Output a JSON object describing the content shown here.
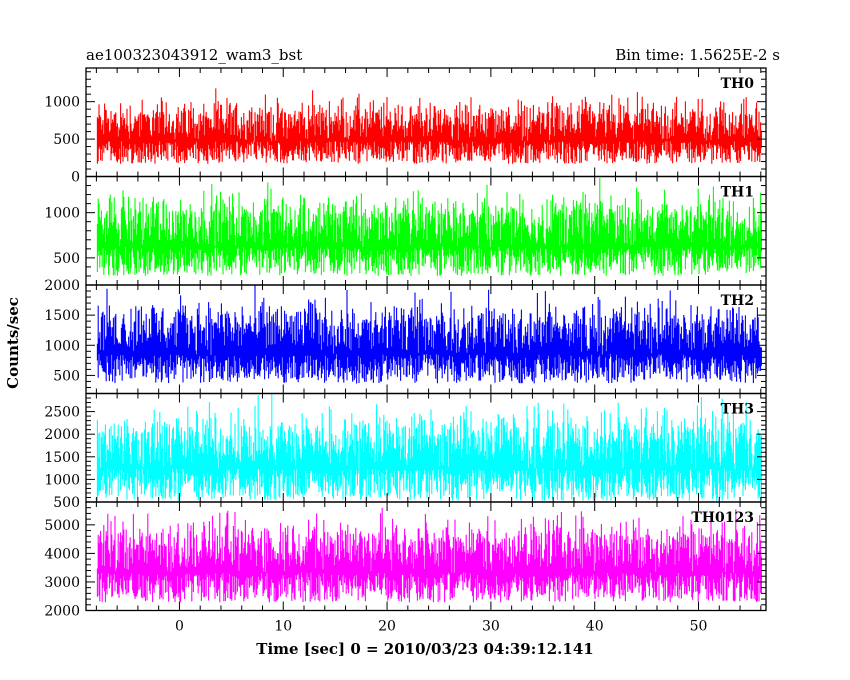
{
  "chart_data": {
    "type": "line",
    "title_left": "ae100323043912_wam3_bst",
    "title_right": "Bin time: 1.5625E-2 s",
    "xlabel": "Time [sec] 0 = 2010/03/23 04:39:12.141",
    "ylabel": "Counts/sec",
    "xlim": [
      -9,
      56.5
    ],
    "data_x_range": [
      -7.9,
      56.1
    ],
    "x_ticks": [
      0,
      10,
      20,
      30,
      40,
      50
    ],
    "x_tick_labels": [
      "0",
      "10",
      "20",
      "30",
      "40",
      "50"
    ],
    "x_minor_step": 2,
    "panels": [
      {
        "name": "TH0",
        "color": "#ff0000",
        "ylim": [
          0,
          1450
        ],
        "y_ticks": [
          0,
          500,
          1000
        ],
        "y_tick_labels": [
          "0",
          "500",
          "1000"
        ],
        "y_minor_step": 100,
        "mean": 560,
        "spread": 400,
        "min": 40,
        "max": 1450
      },
      {
        "name": "TH1",
        "color": "#00ff00",
        "ylim": [
          200,
          1400
        ],
        "y_ticks": [
          500,
          1000
        ],
        "y_tick_labels": [
          "500",
          "1000"
        ],
        "y_minor_step": 100,
        "mean": 720,
        "spread": 430,
        "min": 260,
        "max": 1400
      },
      {
        "name": "TH2",
        "color": "#0000ff",
        "ylim": [
          200,
          2000
        ],
        "y_ticks": [
          500,
          1000,
          1500,
          2000
        ],
        "y_tick_labels": [
          "500",
          "1000",
          "1500",
          "2000"
        ],
        "y_minor_step": 100,
        "mean": 1000,
        "spread": 650,
        "min": 230,
        "max": 2000
      },
      {
        "name": "TH3",
        "color": "#00ffff",
        "ylim": [
          500,
          2900
        ],
        "y_ticks": [
          500,
          1000,
          1500,
          2000,
          2500
        ],
        "y_tick_labels": [
          "500",
          "1000",
          "1500",
          "2000",
          "2500"
        ],
        "y_minor_step": 100,
        "mean": 1450,
        "spread": 950,
        "min": 520,
        "max": 2900
      },
      {
        "name": "TH0123",
        "color": "#ff00ff",
        "ylim": [
          2000,
          5800
        ],
        "y_ticks": [
          2000,
          3000,
          4000,
          5000
        ],
        "y_tick_labels": [
          "2000",
          "3000",
          "4000",
          "5000"
        ],
        "y_minor_step": 200,
        "mean": 3650,
        "spread": 1400,
        "min": 2050,
        "max": 5600
      }
    ]
  }
}
